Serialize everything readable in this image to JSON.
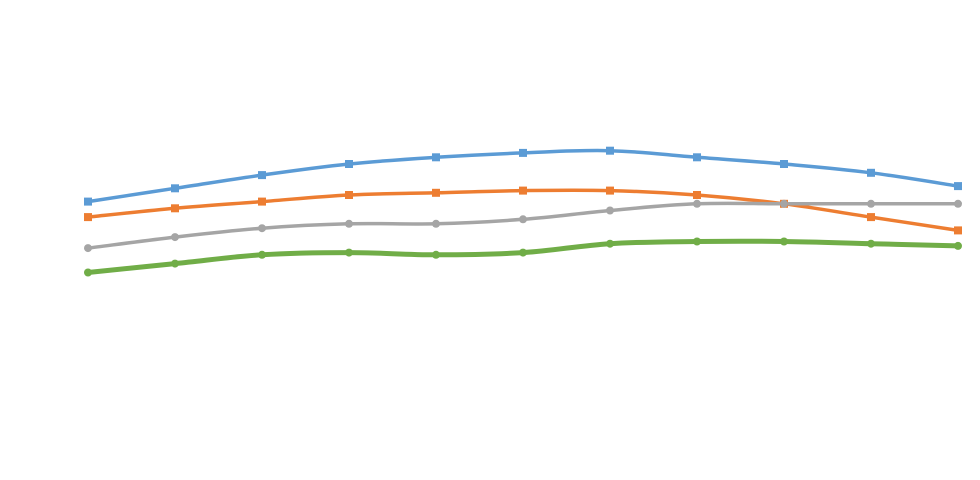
{
  "chart_data": {
    "type": "line",
    "title": "",
    "xlabel": "",
    "ylabel": "",
    "ylim": [
      0,
      100
    ],
    "grid": false,
    "legend": "none",
    "x": [
      1,
      2,
      3,
      4,
      5,
      6,
      7,
      8,
      9,
      10,
      11
    ],
    "series": [
      {
        "color": "#5b9bd5",
        "marker": "square",
        "values": [
          59,
          62,
          65,
          67.5,
          69,
          70,
          70.5,
          69,
          67.5,
          65.5,
          62.5
        ]
      },
      {
        "color": "#ed7d31",
        "marker": "square",
        "values": [
          55.5,
          57.5,
          59,
          60.5,
          61,
          61.5,
          61.5,
          60.5,
          58.5,
          55.5,
          52.5
        ]
      },
      {
        "color": "#a5a5a5",
        "marker": "circle",
        "values": [
          48.5,
          51,
          53,
          54,
          54,
          55,
          57,
          58.5,
          58.5,
          58.5,
          58.5
        ]
      },
      {
        "color": "#70ad47",
        "marker": "circle",
        "values": [
          43,
          45,
          47,
          47.5,
          47,
          47.5,
          49.5,
          50,
          50,
          49.5,
          49
        ]
      }
    ]
  }
}
